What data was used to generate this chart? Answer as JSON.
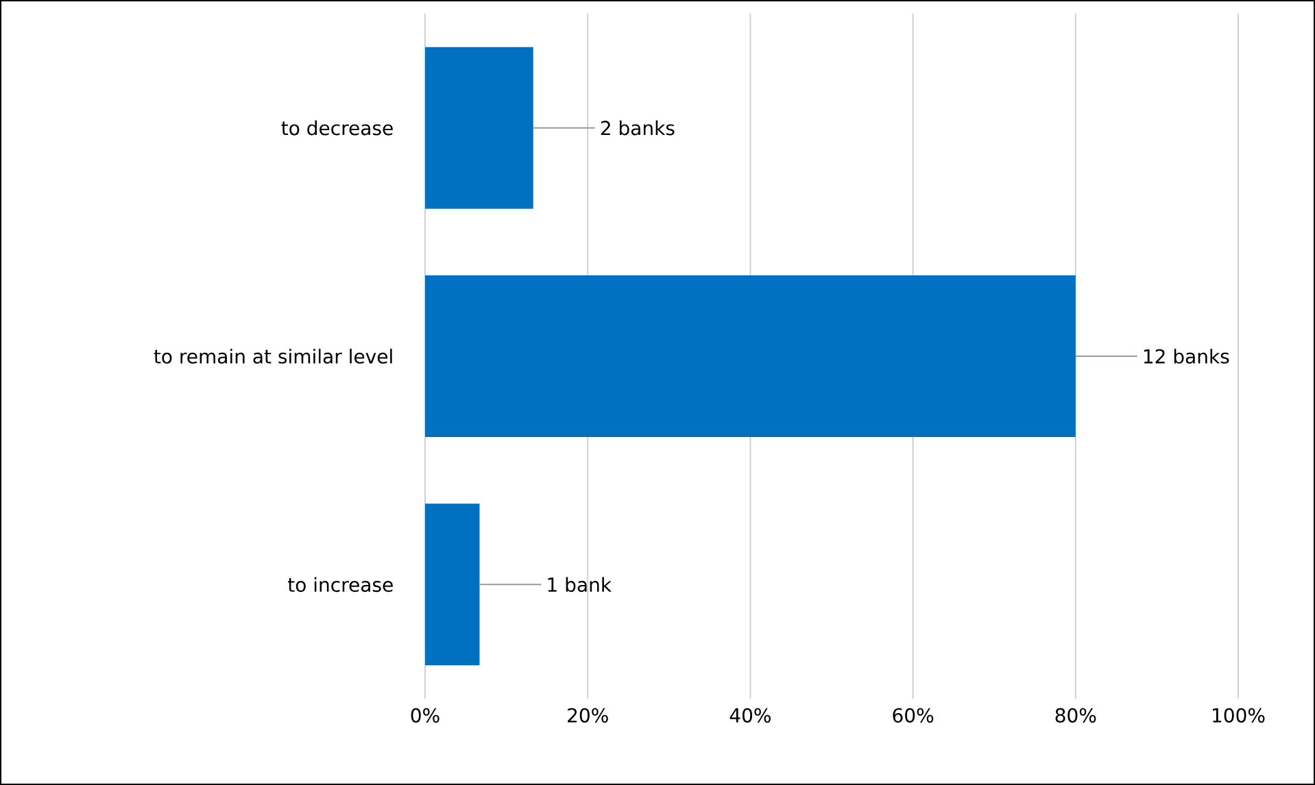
{
  "chart_data": {
    "type": "bar",
    "orientation": "horizontal",
    "categories": [
      "to decrease",
      "to remain at similar level",
      "to increase"
    ],
    "values": [
      13.3,
      80,
      6.7
    ],
    "annotations": [
      {
        "text": "2 banks",
        "x": 13.3,
        "y": "to decrease"
      },
      {
        "text": "12 banks",
        "x": 80,
        "y": "to remain at similar level"
      },
      {
        "text": "1 bank",
        "x": 6.7,
        "y": "to increase"
      }
    ],
    "color": "#0070c0",
    "xlim": [
      0,
      100
    ],
    "xticks": [
      {
        "value": 0,
        "label": "0%"
      },
      {
        "value": 20,
        "label": "20%"
      },
      {
        "value": 40,
        "label": "40%"
      },
      {
        "value": 60,
        "label": "60%"
      },
      {
        "value": 80,
        "label": "80%"
      },
      {
        "value": 100,
        "label": "100%"
      }
    ],
    "grid": "x"
  }
}
